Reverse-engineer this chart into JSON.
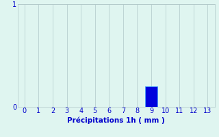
{
  "x_values": [
    0,
    1,
    2,
    3,
    4,
    5,
    6,
    7,
    8,
    9,
    10,
    11,
    12,
    13
  ],
  "bar_values": [
    0,
    0,
    0,
    0,
    0,
    0,
    0,
    0,
    0,
    0.2,
    0,
    0,
    0,
    0
  ],
  "bar_color": "#0000dd",
  "bar_edge_color": "#44aaff",
  "background_color": "#dff5f0",
  "grid_color": "#b0c8c8",
  "text_color": "#0000cc",
  "xlabel": "Précipitations 1h ( mm )",
  "ylim": [
    0,
    1
  ],
  "xlim": [
    -0.5,
    13.5
  ],
  "yticks": [
    0,
    1
  ],
  "xticks": [
    0,
    1,
    2,
    3,
    4,
    5,
    6,
    7,
    8,
    9,
    10,
    11,
    12,
    13
  ],
  "xlabel_fontsize": 7.5,
  "tick_fontsize": 7,
  "bar_width": 0.85
}
